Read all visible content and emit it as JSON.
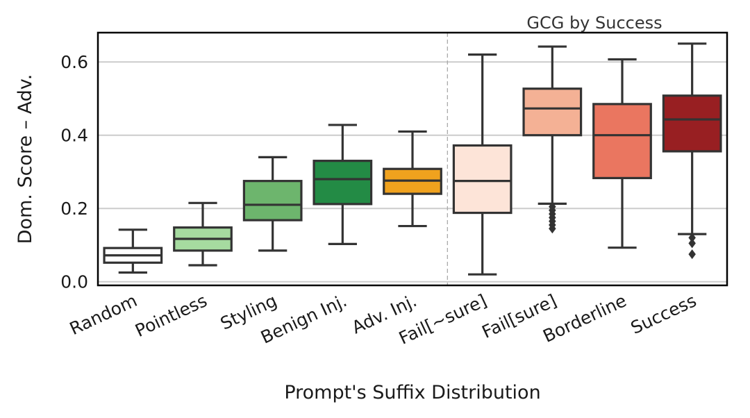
{
  "chart_data": {
    "type": "box",
    "title": "",
    "xlabel": "Prompt's Suffix Distribution",
    "ylabel": "Dom. Score – Adv.",
    "ylim": [
      -0.01,
      0.68
    ],
    "yticks": [
      0.0,
      0.2,
      0.4,
      0.6
    ],
    "ytick_labels": [
      "0.0",
      "0.2",
      "0.4",
      "0.6"
    ],
    "grid": "horizontal",
    "annotation": "GCG by Success",
    "divider_after_category": "Adv. Inj.",
    "categories": [
      "Random",
      "Pointless",
      "Styling",
      "Benign Inj.",
      "Adv. Inj.",
      "Fail[~sure]",
      "Fail[sure]",
      "Borderline",
      "Success"
    ],
    "boxes": [
      {
        "name": "Random",
        "color": "#ffffff",
        "whisker_low": 0.025,
        "q1": 0.052,
        "median": 0.072,
        "q3": 0.092,
        "whisker_high": 0.142,
        "outliers": []
      },
      {
        "name": "Pointless",
        "color": "#a6dba0",
        "whisker_low": 0.045,
        "q1": 0.085,
        "median": 0.117,
        "q3": 0.148,
        "whisker_high": 0.215,
        "outliers": []
      },
      {
        "name": "Styling",
        "color": "#6db56d",
        "whisker_low": 0.085,
        "q1": 0.168,
        "median": 0.21,
        "q3": 0.275,
        "whisker_high": 0.34,
        "outliers": []
      },
      {
        "name": "Benign Inj.",
        "color": "#238b45",
        "whisker_low": 0.103,
        "q1": 0.212,
        "median": 0.28,
        "q3": 0.33,
        "whisker_high": 0.428,
        "outliers": []
      },
      {
        "name": "Adv. Inj.",
        "color": "#f0a21e",
        "whisker_low": 0.152,
        "q1": 0.24,
        "median": 0.276,
        "q3": 0.308,
        "whisker_high": 0.41,
        "outliers": []
      },
      {
        "name": "Fail[~sure]",
        "color": "#fde4d8",
        "whisker_low": 0.02,
        "q1": 0.188,
        "median": 0.275,
        "q3": 0.372,
        "whisker_high": 0.62,
        "outliers": []
      },
      {
        "name": "Fail[sure]",
        "color": "#f4b195",
        "whisker_low": 0.213,
        "q1": 0.4,
        "median": 0.473,
        "q3": 0.527,
        "whisker_high": 0.642,
        "outliers": [
          0.205,
          0.195,
          0.185,
          0.175,
          0.165,
          0.155,
          0.145
        ]
      },
      {
        "name": "Borderline",
        "color": "#ea7660",
        "whisker_low": 0.093,
        "q1": 0.283,
        "median": 0.4,
        "q3": 0.485,
        "whisker_high": 0.607,
        "outliers": []
      },
      {
        "name": "Success",
        "color": "#981f22",
        "whisker_low": 0.13,
        "q1": 0.356,
        "median": 0.443,
        "q3": 0.508,
        "whisker_high": 0.65,
        "outliers": [
          0.12,
          0.105,
          0.075
        ]
      }
    ]
  }
}
